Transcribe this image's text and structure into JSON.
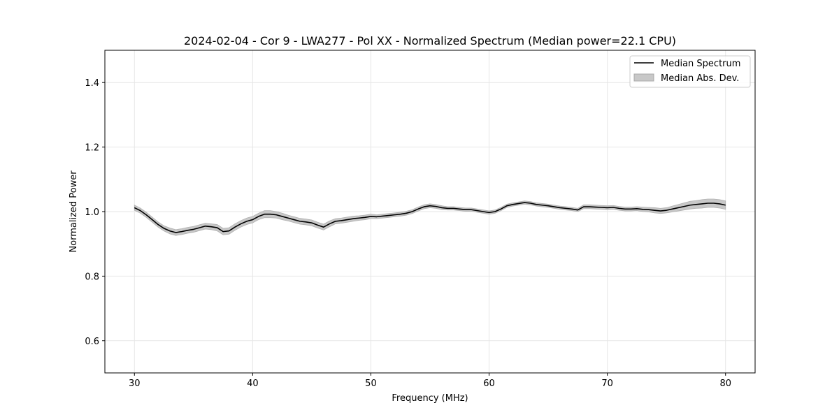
{
  "chart_data": {
    "type": "line",
    "title": "2024-02-04 - Cor 9 - LWA277 - Pol XX - Normalized Spectrum (Median power=22.1 CPU)",
    "xlabel": "Frequency (MHz)",
    "ylabel": "Normalized Power",
    "xlim": [
      27.5,
      82.5
    ],
    "ylim": [
      0.5,
      1.5
    ],
    "xticks": [
      30,
      40,
      50,
      60,
      70,
      80
    ],
    "yticks": [
      0.6,
      0.8,
      1.0,
      1.2,
      1.4
    ],
    "xtick_labels": [
      "30",
      "40",
      "50",
      "60",
      "70",
      "80"
    ],
    "ytick_labels": [
      "0.6",
      "0.8",
      "1.0",
      "1.2",
      "1.4"
    ],
    "grid": true,
    "legend_position": "top-right",
    "legend": [
      {
        "label": "Median Spectrum",
        "kind": "line",
        "color": "#000000"
      },
      {
        "label": "Median Abs. Dev.",
        "kind": "band",
        "color": "#c8c8c8"
      }
    ],
    "series": [
      {
        "name": "Median Spectrum",
        "x": [
          30,
          30.5,
          31,
          31.5,
          32,
          32.5,
          33,
          33.5,
          34,
          34.5,
          35,
          35.5,
          36,
          36.5,
          37,
          37.5,
          38,
          38.5,
          39,
          39.5,
          40,
          40.5,
          41,
          41.5,
          42,
          42.5,
          43,
          43.5,
          44,
          44.5,
          45,
          45.5,
          46,
          46.5,
          47,
          47.5,
          48,
          48.5,
          49,
          49.5,
          50,
          50.5,
          51,
          51.5,
          52,
          52.5,
          53,
          53.5,
          54,
          54.5,
          55,
          55.5,
          56,
          56.5,
          57,
          57.5,
          58,
          58.5,
          59,
          59.5,
          60,
          60.5,
          61,
          61.5,
          62,
          62.5,
          63,
          63.5,
          64,
          64.5,
          65,
          65.5,
          66,
          66.5,
          67,
          67.5,
          68,
          68.5,
          69,
          69.5,
          70,
          70.5,
          71,
          71.5,
          72,
          72.5,
          73,
          73.5,
          74,
          74.5,
          75,
          75.5,
          76,
          76.5,
          77,
          77.5,
          78,
          78.5,
          79,
          79.5,
          80
        ],
        "y": [
          1.012,
          1.003,
          0.99,
          0.975,
          0.96,
          0.948,
          0.94,
          0.935,
          0.938,
          0.942,
          0.945,
          0.95,
          0.955,
          0.953,
          0.95,
          0.938,
          0.94,
          0.952,
          0.962,
          0.97,
          0.975,
          0.985,
          0.992,
          0.992,
          0.99,
          0.985,
          0.98,
          0.975,
          0.97,
          0.968,
          0.965,
          0.958,
          0.952,
          0.962,
          0.97,
          0.972,
          0.975,
          0.978,
          0.98,
          0.982,
          0.985,
          0.984,
          0.986,
          0.988,
          0.99,
          0.992,
          0.995,
          1.0,
          1.008,
          1.015,
          1.018,
          1.016,
          1.012,
          1.01,
          1.01,
          1.008,
          1.006,
          1.006,
          1.003,
          1.0,
          0.997,
          1.0,
          1.008,
          1.018,
          1.022,
          1.025,
          1.028,
          1.026,
          1.022,
          1.02,
          1.018,
          1.015,
          1.012,
          1.01,
          1.008,
          1.005,
          1.015,
          1.015,
          1.014,
          1.013,
          1.012,
          1.013,
          1.01,
          1.008,
          1.008,
          1.009,
          1.007,
          1.006,
          1.004,
          1.002,
          1.004,
          1.008,
          1.012,
          1.016,
          1.02,
          1.022,
          1.024,
          1.026,
          1.026,
          1.024,
          1.02
        ]
      },
      {
        "name": "Median Abs. Dev.",
        "values": [
          0.008,
          0.008,
          0.008,
          0.008,
          0.008,
          0.008,
          0.009,
          0.009,
          0.009,
          0.009,
          0.009,
          0.009,
          0.009,
          0.009,
          0.01,
          0.01,
          0.01,
          0.01,
          0.01,
          0.01,
          0.01,
          0.01,
          0.011,
          0.011,
          0.01,
          0.01,
          0.009,
          0.009,
          0.009,
          0.009,
          0.009,
          0.009,
          0.009,
          0.009,
          0.008,
          0.008,
          0.008,
          0.008,
          0.007,
          0.007,
          0.007,
          0.006,
          0.006,
          0.006,
          0.006,
          0.006,
          0.006,
          0.006,
          0.006,
          0.006,
          0.006,
          0.006,
          0.006,
          0.005,
          0.005,
          0.005,
          0.005,
          0.005,
          0.005,
          0.005,
          0.005,
          0.005,
          0.005,
          0.005,
          0.005,
          0.005,
          0.005,
          0.005,
          0.005,
          0.005,
          0.005,
          0.005,
          0.005,
          0.005,
          0.005,
          0.005,
          0.006,
          0.006,
          0.006,
          0.006,
          0.006,
          0.006,
          0.006,
          0.006,
          0.006,
          0.006,
          0.007,
          0.007,
          0.008,
          0.008,
          0.008,
          0.009,
          0.01,
          0.011,
          0.012,
          0.012,
          0.013,
          0.013,
          0.013,
          0.013,
          0.013
        ]
      }
    ]
  }
}
